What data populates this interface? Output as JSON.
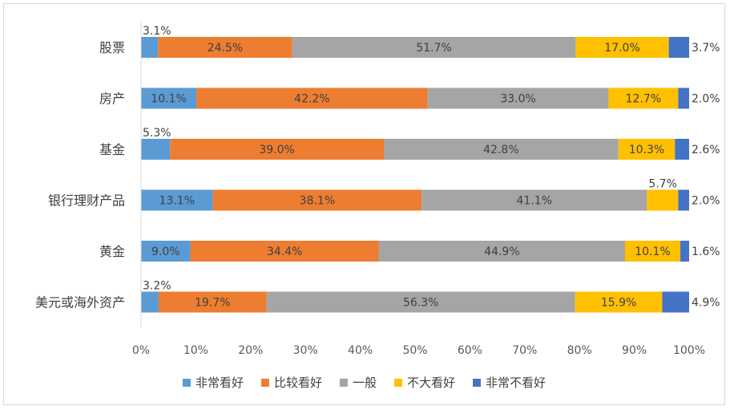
{
  "chart_data": {
    "type": "bar",
    "orientation": "horizontal",
    "stacked": "100%",
    "categories": [
      "股票",
      "房产",
      "基金",
      "银行理财产品",
      "黄金",
      "美元或海外资产"
    ],
    "series": [
      {
        "name": "非常看好",
        "color": "#5B9BD5",
        "values": [
          3.1,
          10.1,
          5.3,
          13.1,
          9.0,
          3.2
        ],
        "labels": [
          "3.1%",
          "10.1%",
          "5.3%",
          "13.1%",
          "9.0%",
          "3.2%"
        ]
      },
      {
        "name": "比较看好",
        "color": "#ED7D31",
        "values": [
          24.5,
          42.2,
          39.0,
          38.1,
          34.4,
          19.7
        ],
        "labels": [
          "24.5%",
          "42.2%",
          "39.0%",
          "38.1%",
          "34.4%",
          "19.7%"
        ]
      },
      {
        "name": "一般",
        "color": "#A5A5A5",
        "values": [
          51.7,
          33.0,
          42.8,
          41.1,
          44.9,
          56.3
        ],
        "labels": [
          "51.7%",
          "33.0%",
          "42.8%",
          "41.1%",
          "44.9%",
          "56.3%"
        ]
      },
      {
        "name": "不大看好",
        "color": "#FFC000",
        "values": [
          17.0,
          12.7,
          10.3,
          5.7,
          10.1,
          15.9
        ],
        "labels": [
          "17.0%",
          "12.7%",
          "10.3%",
          "5.7%",
          "10.1%",
          "15.9%"
        ]
      },
      {
        "name": "非常不看好",
        "color": "#4472C4",
        "values": [
          3.7,
          2.0,
          2.6,
          2.0,
          1.6,
          4.9
        ],
        "labels": [
          "3.7%",
          "2.0%",
          "2.6%",
          "2.0%",
          "1.6%",
          "4.9%"
        ]
      }
    ],
    "x_ticks": [
      "0%",
      "10%",
      "20%",
      "30%",
      "40%",
      "50%",
      "60%",
      "70%",
      "80%",
      "90%",
      "100%"
    ],
    "xlim": [
      0,
      100
    ],
    "title": "",
    "xlabel": "",
    "ylabel": "",
    "grid": false,
    "legend_position": "bottom"
  }
}
